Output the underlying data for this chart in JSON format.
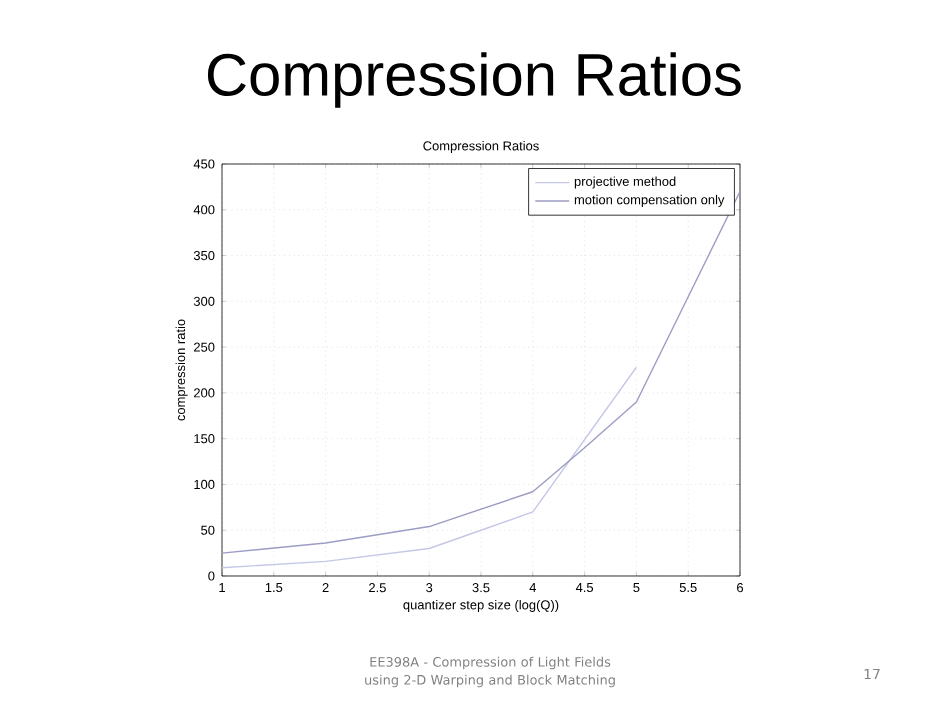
{
  "chart_data": {
    "type": "line",
    "title": "Compression Ratios",
    "subtitle": "Compression Ratios",
    "xlabel": "quantizer step size (log(Q))",
    "ylabel": "compression ratio",
    "xlim": [
      1,
      6
    ],
    "ylim": [
      0,
      450
    ],
    "xticks": [
      1,
      1.5,
      2,
      2.5,
      3,
      3.5,
      4,
      4.5,
      5,
      5.5,
      6
    ],
    "yticks": [
      0,
      50,
      100,
      150,
      200,
      250,
      300,
      350,
      400,
      450
    ],
    "grid": true,
    "legend": "top right",
    "line_style": "solid",
    "marker": "none",
    "series": [
      {
        "name": "projective method",
        "color": "#c4c8e6",
        "x": [
          1,
          2,
          3,
          3.5,
          4,
          5
        ],
        "values": [
          9,
          16,
          30,
          50,
          70,
          228
        ]
      },
      {
        "name": "motion compensation only",
        "color": "#9c9cc4",
        "x": [
          1,
          2,
          3,
          4,
          4.5,
          5,
          5.5,
          6
        ],
        "values": [
          25,
          36,
          54,
          92,
          140,
          190,
          305,
          420
        ]
      }
    ],
    "annotations": [
      "EE398A - Compression of Light Fields using 2-D Warping and Block Matching",
      "17"
    ]
  }
}
